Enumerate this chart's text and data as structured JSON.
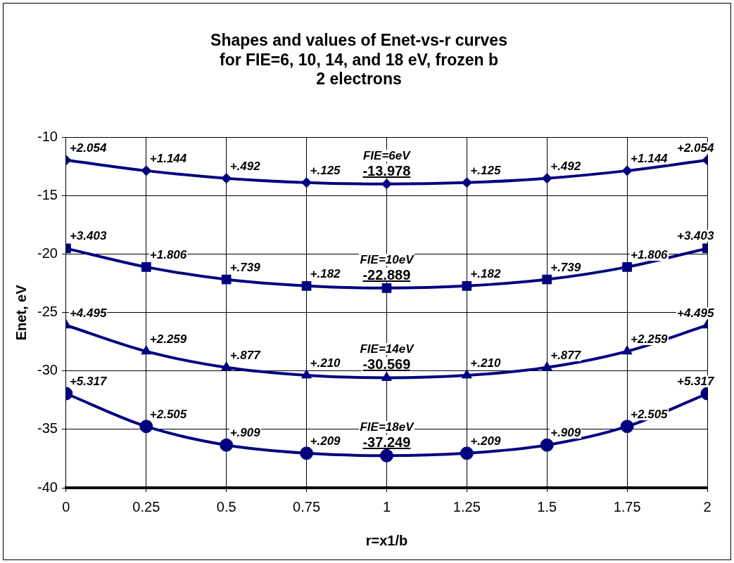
{
  "chart_data": {
    "type": "line",
    "title": "Shapes and values of Enet-vs-r curves\nfor FIE=6, 10, 14, and 18 eV, frozen b\n2 electrons",
    "xlabel": "r=x1/b",
    "ylabel": "Enet, eV",
    "x": [
      0,
      0.25,
      0.5,
      0.75,
      1,
      1.25,
      1.5,
      1.75,
      2
    ],
    "series": [
      {
        "name": "FIE=6eV",
        "color": "#000080",
        "marker": "diamond",
        "values": [
          -11.924,
          -12.834,
          -13.486,
          -13.853,
          -13.978,
          -13.853,
          -13.486,
          -12.834,
          -11.924
        ]
      },
      {
        "name": "FIE=10eV",
        "color": "#000080",
        "marker": "square",
        "values": [
          -19.486,
          -21.083,
          -22.15,
          -22.707,
          -22.889,
          -22.707,
          -22.15,
          -21.083,
          -19.486
        ]
      },
      {
        "name": "FIE=14eV",
        "color": "#000080",
        "marker": "triangle",
        "values": [
          -26.074,
          -28.31,
          -29.692,
          -30.359,
          -30.569,
          -30.359,
          -29.692,
          -28.31,
          -26.074
        ]
      },
      {
        "name": "FIE=18eV",
        "color": "#000080",
        "marker": "circle",
        "values": [
          -31.932,
          -34.744,
          -36.34,
          -37.04,
          -37.249,
          -37.04,
          -36.34,
          -34.744,
          -31.932
        ]
      }
    ],
    "annotations": [
      {
        "text": "+2.054",
        "x": 0,
        "y": -11.924
      },
      {
        "text": "+1.144",
        "x": 0.25,
        "y": -12.834
      },
      {
        "text": "+.492",
        "x": 0.5,
        "y": -13.486
      },
      {
        "text": "+.125",
        "x": 0.75,
        "y": -13.853
      },
      {
        "text": "-13.978",
        "x": 1,
        "y": -13.978
      },
      {
        "text": "+.125",
        "x": 1.25,
        "y": -13.853
      },
      {
        "text": "+.492",
        "x": 1.5,
        "y": -13.486
      },
      {
        "text": "+1.144",
        "x": 1.75,
        "y": -12.834
      },
      {
        "text": "+2.054",
        "x": 2,
        "y": -11.924
      },
      {
        "text": "+3.403",
        "x": 0,
        "y": -19.486
      },
      {
        "text": "+1.806",
        "x": 0.25,
        "y": -21.083
      },
      {
        "text": "+.739",
        "x": 0.5,
        "y": -22.15
      },
      {
        "text": "+.182",
        "x": 0.75,
        "y": -22.707
      },
      {
        "text": "-22.889",
        "x": 1,
        "y": -22.889
      },
      {
        "text": "+.182",
        "x": 1.25,
        "y": -22.707
      },
      {
        "text": "+.739",
        "x": 1.5,
        "y": -22.15
      },
      {
        "text": "+1.806",
        "x": 1.75,
        "y": -21.083
      },
      {
        "text": "+3.403",
        "x": 2,
        "y": -19.486
      },
      {
        "text": "+4.495",
        "x": 0,
        "y": -26.074
      },
      {
        "text": "+2.259",
        "x": 0.25,
        "y": -28.31
      },
      {
        "text": "+.877",
        "x": 0.5,
        "y": -29.692
      },
      {
        "text": "+.210",
        "x": 0.75,
        "y": -30.359
      },
      {
        "text": "-30.569",
        "x": 1,
        "y": -30.569
      },
      {
        "text": "+.210",
        "x": 1.25,
        "y": -30.359
      },
      {
        "text": "+.877",
        "x": 1.5,
        "y": -29.692
      },
      {
        "text": "+2.259",
        "x": 1.75,
        "y": -28.31
      },
      {
        "text": "+4.495",
        "x": 2,
        "y": -26.074
      },
      {
        "text": "+5.317",
        "x": 0,
        "y": -31.932
      },
      {
        "text": "+2.505",
        "x": 0.25,
        "y": -34.744
      },
      {
        "text": "+.909",
        "x": 0.5,
        "y": -36.34
      },
      {
        "text": "+.209",
        "x": 0.75,
        "y": -37.04
      },
      {
        "text": "-37.249",
        "x": 1,
        "y": -37.249
      },
      {
        "text": "+.209",
        "x": 1.25,
        "y": -37.04
      },
      {
        "text": "+.909",
        "x": 1.5,
        "y": -36.34
      },
      {
        "text": "+2.505",
        "x": 1.75,
        "y": -34.744
      },
      {
        "text": "+5.317",
        "x": 2,
        "y": -31.932
      }
    ],
    "xlim": [
      0,
      2
    ],
    "xticks": [
      0,
      0.25,
      0.5,
      0.75,
      1,
      1.25,
      1.5,
      1.75,
      2
    ],
    "ylim": [
      -40,
      -10
    ],
    "yticks": [
      -40,
      -35,
      -30,
      -25,
      -20,
      -15,
      -10
    ],
    "grid": true,
    "legend": false,
    "line_style": "solid"
  }
}
